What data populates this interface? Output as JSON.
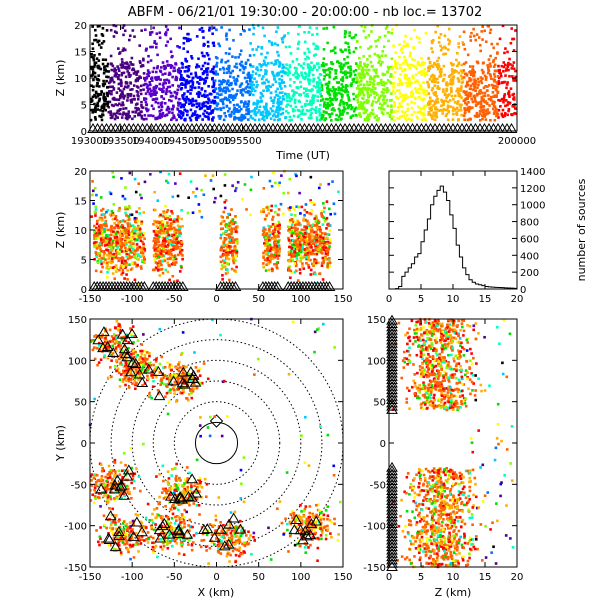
{
  "chart_data": {
    "title": "ABFM - 06/21/01 19:30:00 - 20:00:00 - nb loc.=  13702",
    "panels": {
      "time_height": {
        "type": "scatter",
        "xlabel": "Time (UT)",
        "ylabel": "Z (km)",
        "xlim": [
          193000,
          200000
        ],
        "ylim": [
          0,
          20
        ],
        "xticks": [
          "193000",
          "193500",
          "194000",
          "194500",
          "195000",
          "195500",
          "200000"
        ],
        "yticks": [
          "0",
          "5",
          "10",
          "15",
          "20"
        ],
        "color_coding": "time (purple to red)",
        "core_altitude_km": [
          2,
          13
        ],
        "sparse_altitude_km": [
          13,
          20
        ]
      },
      "x_z": {
        "type": "scatter",
        "xlabel": "",
        "ylabel": "Z (km)",
        "xlim": [
          -150,
          150
        ],
        "ylim": [
          0,
          20
        ],
        "xticks": [
          "-150",
          "-100",
          "-50",
          "0",
          "50",
          "100",
          "150"
        ],
        "yticks": [
          "0",
          "5",
          "10",
          "15",
          "20"
        ],
        "clusters_x_km": [
          [
            -145,
            -85
          ],
          [
            -75,
            -40
          ],
          [
            5,
            25
          ],
          [
            55,
            75
          ],
          [
            85,
            135
          ]
        ]
      },
      "histogram": {
        "type": "bar",
        "xlabel": "",
        "ylabel": "number of sources",
        "xlim": [
          0,
          20
        ],
        "ylim": [
          0,
          1400
        ],
        "xticks": [
          "0",
          "5",
          "10",
          "15",
          "20"
        ],
        "yticks": [
          "0",
          "200",
          "400",
          "600",
          "800",
          "1000",
          "1200",
          "1400"
        ],
        "bin_width_km": 0.5,
        "bin_start_km": 0,
        "counts": [
          0,
          0,
          5,
          30,
          150,
          200,
          250,
          300,
          380,
          420,
          560,
          700,
          830,
          1000,
          1100,
          1170,
          1220,
          1150,
          1050,
          880,
          720,
          520,
          380,
          250,
          170,
          110,
          80,
          60,
          50,
          40,
          30,
          25,
          22,
          20,
          18,
          16,
          14,
          12,
          10,
          8
        ]
      },
      "plan_view": {
        "type": "scatter",
        "xlabel": "X (km)",
        "ylabel": "Y (km)",
        "xlim": [
          -150,
          150
        ],
        "ylim": [
          -150,
          150
        ],
        "xticks": [
          "-150",
          "-100",
          "-50",
          "0",
          "50",
          "100",
          "150"
        ],
        "yticks": [
          "-150",
          "-100",
          "-50",
          "0",
          "50",
          "100",
          "150"
        ],
        "range_rings_km": [
          25,
          50,
          75,
          100,
          125,
          150
        ],
        "clusters_xy_km": [
          [
            -120,
            120
          ],
          [
            -95,
            90
          ],
          [
            -45,
            75
          ],
          [
            -125,
            -50
          ],
          [
            -110,
            -110
          ],
          [
            -55,
            -110
          ],
          [
            15,
            -115
          ],
          [
            110,
            -100
          ],
          [
            -40,
            -60
          ]
        ]
      },
      "z_y": {
        "type": "scatter",
        "xlabel": "Z (km)",
        "ylabel": "",
        "xlim": [
          0,
          20
        ],
        "ylim": [
          -150,
          150
        ],
        "xticks": [
          "0",
          "5",
          "10",
          "15",
          "20"
        ],
        "yticks": [
          "-150",
          "-100",
          "-50",
          "0",
          "50",
          "100",
          "150"
        ],
        "clusters_y_km": [
          [
            40,
            150
          ],
          [
            -150,
            -30
          ]
        ]
      }
    }
  }
}
